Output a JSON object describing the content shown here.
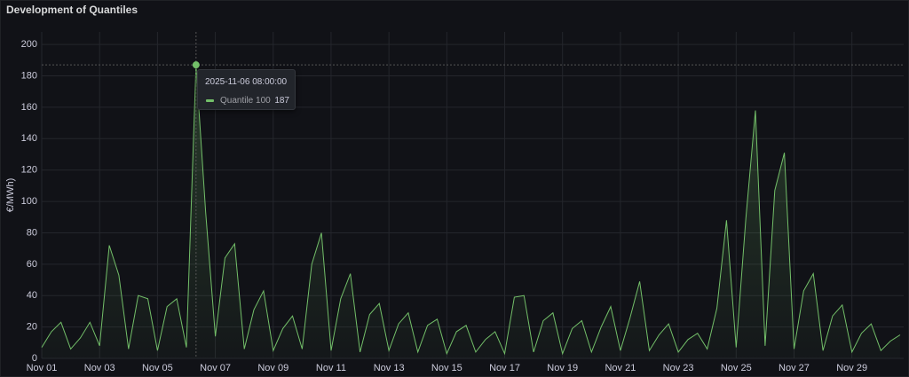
{
  "panel_title": "Development of Quantiles",
  "chart_data": {
    "type": "line",
    "y_label": "€/MWh)",
    "x": [
      "2025-11-01 00:00:00",
      "2025-11-01 08:00:00",
      "2025-11-01 16:00:00",
      "2025-11-02 00:00:00",
      "2025-11-02 08:00:00",
      "2025-11-02 16:00:00",
      "2025-11-03 00:00:00",
      "2025-11-03 08:00:00",
      "2025-11-03 16:00:00",
      "2025-11-04 00:00:00",
      "2025-11-04 08:00:00",
      "2025-11-04 16:00:00",
      "2025-11-05 00:00:00",
      "2025-11-05 08:00:00",
      "2025-11-05 16:00:00",
      "2025-11-06 00:00:00",
      "2025-11-06 08:00:00",
      "2025-11-06 16:00:00",
      "2025-11-07 00:00:00",
      "2025-11-07 08:00:00",
      "2025-11-07 16:00:00",
      "2025-11-08 00:00:00",
      "2025-11-08 08:00:00",
      "2025-11-08 16:00:00",
      "2025-11-09 00:00:00",
      "2025-11-09 08:00:00",
      "2025-11-09 16:00:00",
      "2025-11-10 00:00:00",
      "2025-11-10 08:00:00",
      "2025-11-10 16:00:00",
      "2025-11-11 00:00:00",
      "2025-11-11 08:00:00",
      "2025-11-11 16:00:00",
      "2025-11-12 00:00:00",
      "2025-11-12 08:00:00",
      "2025-11-12 16:00:00",
      "2025-11-13 00:00:00",
      "2025-11-13 08:00:00",
      "2025-11-13 16:00:00",
      "2025-11-14 00:00:00",
      "2025-11-14 08:00:00",
      "2025-11-14 16:00:00",
      "2025-11-15 00:00:00",
      "2025-11-15 08:00:00",
      "2025-11-15 16:00:00",
      "2025-11-16 00:00:00",
      "2025-11-16 08:00:00",
      "2025-11-16 16:00:00",
      "2025-11-17 00:00:00",
      "2025-11-17 08:00:00",
      "2025-11-17 16:00:00",
      "2025-11-18 00:00:00",
      "2025-11-18 08:00:00",
      "2025-11-18 16:00:00",
      "2025-11-19 00:00:00",
      "2025-11-19 08:00:00",
      "2025-11-19 16:00:00",
      "2025-11-20 00:00:00",
      "2025-11-20 08:00:00",
      "2025-11-20 16:00:00",
      "2025-11-21 00:00:00",
      "2025-11-21 08:00:00",
      "2025-11-21 16:00:00",
      "2025-11-22 00:00:00",
      "2025-11-22 08:00:00",
      "2025-11-22 16:00:00",
      "2025-11-23 00:00:00",
      "2025-11-23 08:00:00",
      "2025-11-23 16:00:00",
      "2025-11-24 00:00:00",
      "2025-11-24 08:00:00",
      "2025-11-24 16:00:00",
      "2025-11-25 00:00:00",
      "2025-11-25 08:00:00",
      "2025-11-25 16:00:00",
      "2025-11-26 00:00:00",
      "2025-11-26 08:00:00",
      "2025-11-26 16:00:00",
      "2025-11-27 00:00:00",
      "2025-11-27 08:00:00",
      "2025-11-27 16:00:00",
      "2025-11-28 00:00:00",
      "2025-11-28 08:00:00",
      "2025-11-28 16:00:00",
      "2025-11-29 00:00:00",
      "2025-11-29 08:00:00",
      "2025-11-29 16:00:00",
      "2025-11-30 00:00:00",
      "2025-11-30 08:00:00",
      "2025-11-30 16:00:00"
    ],
    "series": [
      {
        "name": "Quantile 100",
        "color": "#73bf69",
        "values": [
          7,
          17,
          23,
          6,
          13,
          23,
          8,
          72,
          53,
          6,
          40,
          38,
          5,
          33,
          38,
          7,
          187,
          93,
          14,
          64,
          73,
          6,
          31,
          43,
          5,
          19,
          27,
          6,
          60,
          80,
          5,
          38,
          54,
          4,
          28,
          35,
          5,
          22,
          29,
          4,
          21,
          25,
          3,
          17,
          21,
          4,
          12,
          17,
          3,
          39,
          40,
          4,
          24,
          29,
          3,
          19,
          24,
          4,
          20,
          33,
          5,
          26,
          49,
          5,
          15,
          22,
          4,
          12,
          16,
          6,
          32,
          88,
          7,
          89,
          158,
          8,
          107,
          131,
          6,
          43,
          54,
          5,
          27,
          34,
          4,
          16,
          22,
          5,
          11,
          15
        ]
      }
    ],
    "ylim": [
      0,
      208
    ],
    "yticks": [
      0,
      20,
      40,
      60,
      80,
      100,
      120,
      140,
      160,
      180,
      200
    ],
    "xticks": [
      {
        "value": "2025-11-01 00:00:00",
        "label": "Nov 01"
      },
      {
        "value": "2025-11-03 00:00:00",
        "label": "Nov 03"
      },
      {
        "value": "2025-11-05 00:00:00",
        "label": "Nov 05"
      },
      {
        "value": "2025-11-07 00:00:00",
        "label": "Nov 07"
      },
      {
        "value": "2025-11-09 00:00:00",
        "label": "Nov 09"
      },
      {
        "value": "2025-11-11 00:00:00",
        "label": "Nov 11"
      },
      {
        "value": "2025-11-13 00:00:00",
        "label": "Nov 13"
      },
      {
        "value": "2025-11-15 00:00:00",
        "label": "Nov 15"
      },
      {
        "value": "2025-11-17 00:00:00",
        "label": "Nov 17"
      },
      {
        "value": "2025-11-19 00:00:00",
        "label": "Nov 19"
      },
      {
        "value": "2025-11-21 00:00:00",
        "label": "Nov 21"
      },
      {
        "value": "2025-11-23 00:00:00",
        "label": "Nov 23"
      },
      {
        "value": "2025-11-25 00:00:00",
        "label": "Nov 25"
      },
      {
        "value": "2025-11-27 00:00:00",
        "label": "Nov 27"
      },
      {
        "value": "2025-11-29 00:00:00",
        "label": "Nov 29"
      }
    ],
    "grid": true,
    "tooltip_index": 16
  }
}
